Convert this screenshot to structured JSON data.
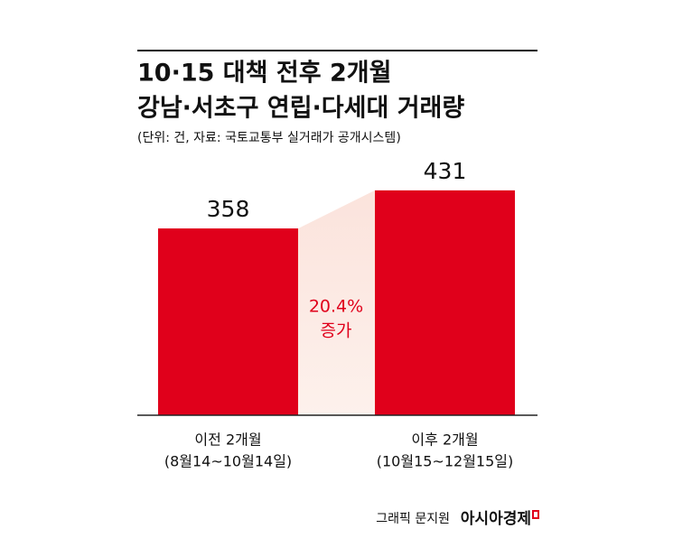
{
  "chart_data": {
    "type": "bar",
    "title": [
      "10·15 대책 전후 2개월",
      "강남·서초구 연립·다세대 거래량"
    ],
    "subtitle": "(단위: 건, 자료: 국토교통부 실거래가 공개시스템)",
    "categories": [
      "이전 2개월",
      "이후 2개월"
    ],
    "category_periods": [
      "(8월14~10월14일)",
      "(10월15~12월15일)"
    ],
    "values": [
      358,
      431
    ],
    "color": "#e0001b",
    "annotation": [
      "20.4%",
      "증가"
    ],
    "credit": "그래픽 문지원",
    "brand": "아시아경제"
  }
}
